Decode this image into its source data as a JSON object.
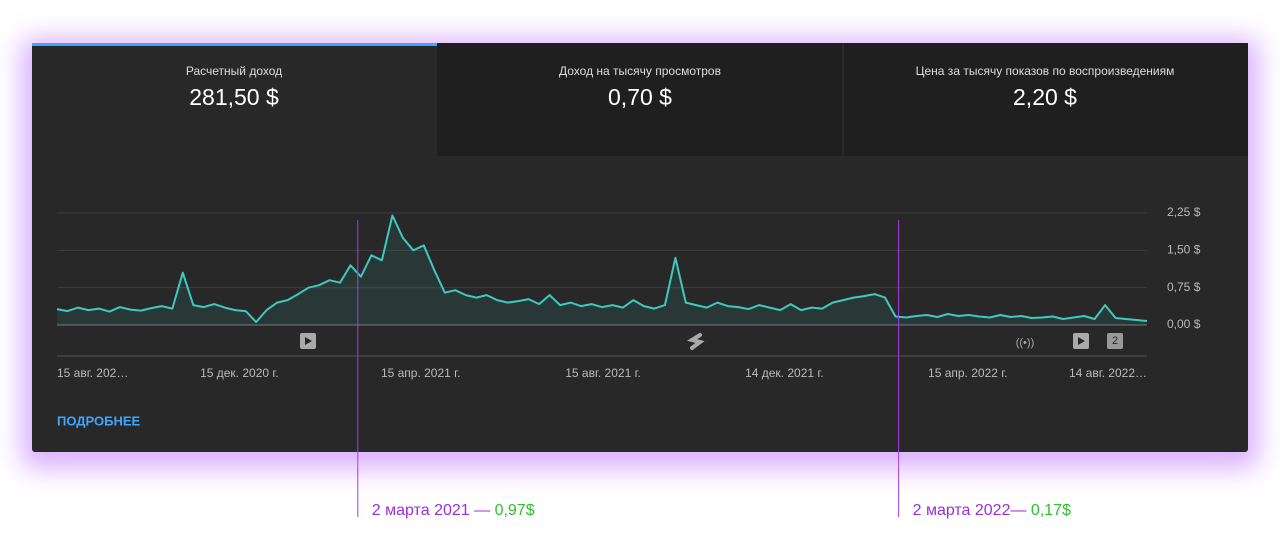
{
  "tabs": [
    {
      "title": "Расчетный доход",
      "value": "281,50 $"
    },
    {
      "title": "Доход на тысячу просмотров",
      "value": "0,70 $"
    },
    {
      "title": "Цена за тысячу показов по воспроизведениям",
      "value": "2,20 $"
    }
  ],
  "more_link": "ПОДРОБНЕЕ",
  "badge": "2",
  "chart_data": {
    "type": "line",
    "color": "#3ec9bf",
    "grid": true,
    "values": [
      0.32,
      0.28,
      0.35,
      0.3,
      0.33,
      0.27,
      0.36,
      0.31,
      0.29,
      0.34,
      0.38,
      0.33,
      1.05,
      0.4,
      0.36,
      0.42,
      0.35,
      0.3,
      0.28,
      0.06,
      0.3,
      0.45,
      0.5,
      0.62,
      0.75,
      0.8,
      0.9,
      0.85,
      1.2,
      0.97,
      1.4,
      1.3,
      2.2,
      1.75,
      1.5,
      1.6,
      1.1,
      0.65,
      0.7,
      0.6,
      0.55,
      0.6,
      0.5,
      0.45,
      0.48,
      0.52,
      0.42,
      0.6,
      0.4,
      0.45,
      0.38,
      0.42,
      0.36,
      0.4,
      0.35,
      0.5,
      0.38,
      0.33,
      0.4,
      1.35,
      0.45,
      0.4,
      0.35,
      0.45,
      0.38,
      0.36,
      0.32,
      0.4,
      0.35,
      0.3,
      0.42,
      0.3,
      0.35,
      0.33,
      0.45,
      0.5,
      0.55,
      0.58,
      0.62,
      0.55,
      0.17,
      0.15,
      0.18,
      0.2,
      0.16,
      0.22,
      0.18,
      0.2,
      0.17,
      0.15,
      0.2,
      0.16,
      0.18,
      0.14,
      0.15,
      0.17,
      0.12,
      0.15,
      0.18,
      0.12,
      0.4,
      0.14,
      0.12,
      0.1,
      0.08
    ],
    "xlim": [
      0,
      104
    ],
    "xticks": [
      {
        "value": 0,
        "label": "15 авг. 202…"
      },
      {
        "value": 17.4,
        "label": "15 дек. 2020 г."
      },
      {
        "value": 34.7,
        "label": "15 апр. 2021 г."
      },
      {
        "value": 52.1,
        "label": "15 авг. 2021 г."
      },
      {
        "value": 69.4,
        "label": "14 дек. 2021 г."
      },
      {
        "value": 86.9,
        "label": "15 апр. 2022 г."
      },
      {
        "value": 104,
        "label": "14 авг. 2022…"
      }
    ],
    "ylim": [
      0,
      2.25
    ],
    "yticks": [
      {
        "value": 0,
        "label": "0,00 $"
      },
      {
        "value": 0.75,
        "label": "0,75 $"
      },
      {
        "value": 1.5,
        "label": "1,50 $"
      },
      {
        "value": 2.25,
        "label": "2,25 $"
      }
    ],
    "annotations": [
      {
        "x": 28.7,
        "label": "2 марта 2021 — ",
        "value": 0.97,
        "value_label": "0,97$"
      },
      {
        "x": 80.3,
        "label": "2 марта 2022— ",
        "value": 0.17,
        "value_label": "0,17$"
      }
    ]
  }
}
